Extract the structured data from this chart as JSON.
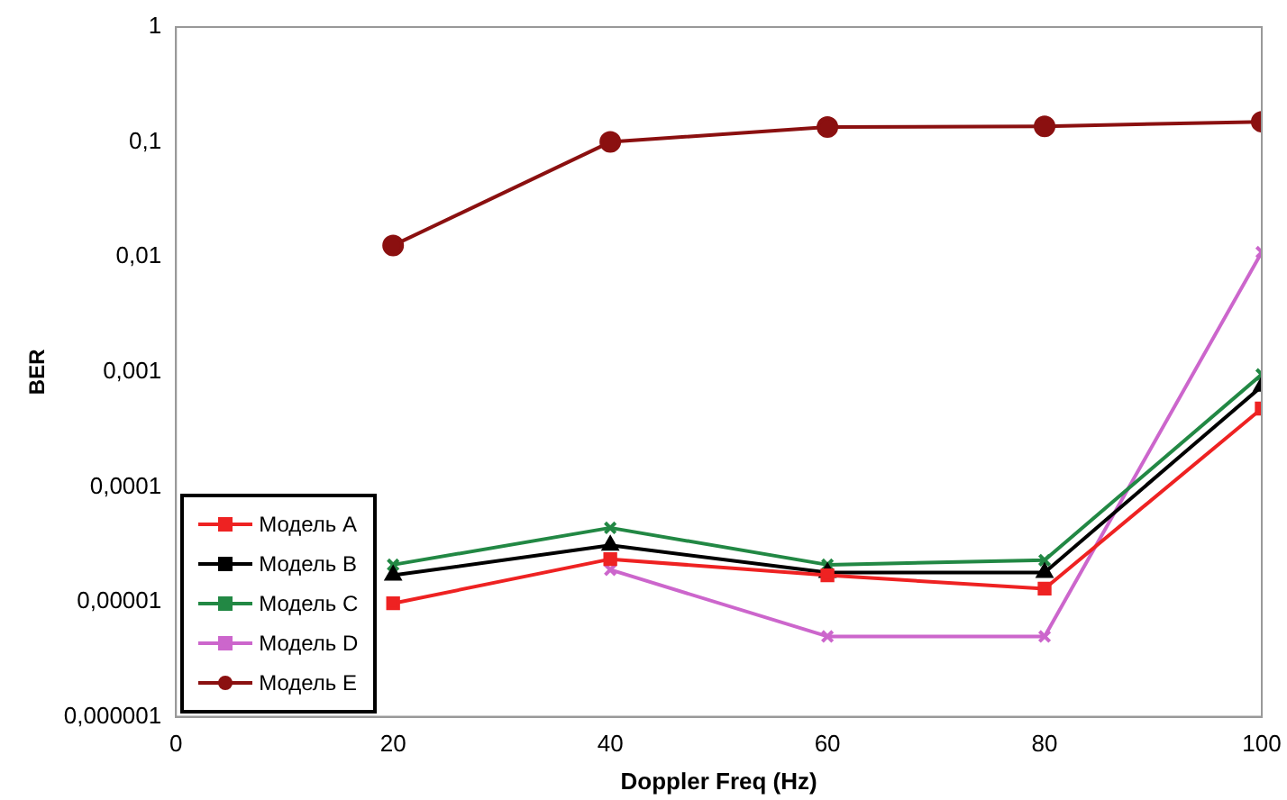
{
  "chart_data": {
    "type": "line",
    "xlabel": "Doppler Freq (Hz)",
    "ylabel": "BER",
    "x": [
      20,
      40,
      60,
      80,
      100
    ],
    "series": [
      {
        "name": "Модель A",
        "color": "#ee2222",
        "marker": "square",
        "values": [
          9.7e-06,
          2.35e-05,
          1.7e-05,
          1.3e-05,
          0.00048
        ]
      },
      {
        "name": "Модель B",
        "color": "#000000",
        "marker": "triangle",
        "values": [
          1.7e-05,
          3.1e-05,
          1.8e-05,
          1.8e-05,
          0.00075
        ]
      },
      {
        "name": "Модель C",
        "color": "#228844",
        "marker": "cross",
        "values": [
          2.1e-05,
          4.4e-05,
          2.1e-05,
          2.3e-05,
          0.00095
        ]
      },
      {
        "name": "Модель D",
        "color": "#cc66cc",
        "marker": "cross",
        "values": [
          null,
          1.9e-05,
          5e-06,
          5e-06,
          0.011
        ]
      },
      {
        "name": "Модель E",
        "color": "#8b1010",
        "marker": "circle",
        "values": [
          0.0126,
          0.1,
          0.135,
          0.137,
          0.15
        ]
      }
    ],
    "log": "y",
    "xlim": [
      0,
      100
    ],
    "xticks": [
      0,
      20,
      40,
      60,
      80,
      100
    ],
    "ylim": [
      1e-06,
      1
    ],
    "yticks": [
      {
        "value": 1e-06,
        "label": "0,000001"
      },
      {
        "value": 1e-05,
        "label": "0,00001"
      },
      {
        "value": 0.0001,
        "label": "0,0001"
      },
      {
        "value": 0.001,
        "label": "0,001"
      },
      {
        "value": 0.01,
        "label": "0,01"
      },
      {
        "value": 0.1,
        "label": "0,1"
      },
      {
        "value": 1,
        "label": "1"
      }
    ],
    "grid": false,
    "legend": "bottom left",
    "line_style": "solid"
  }
}
